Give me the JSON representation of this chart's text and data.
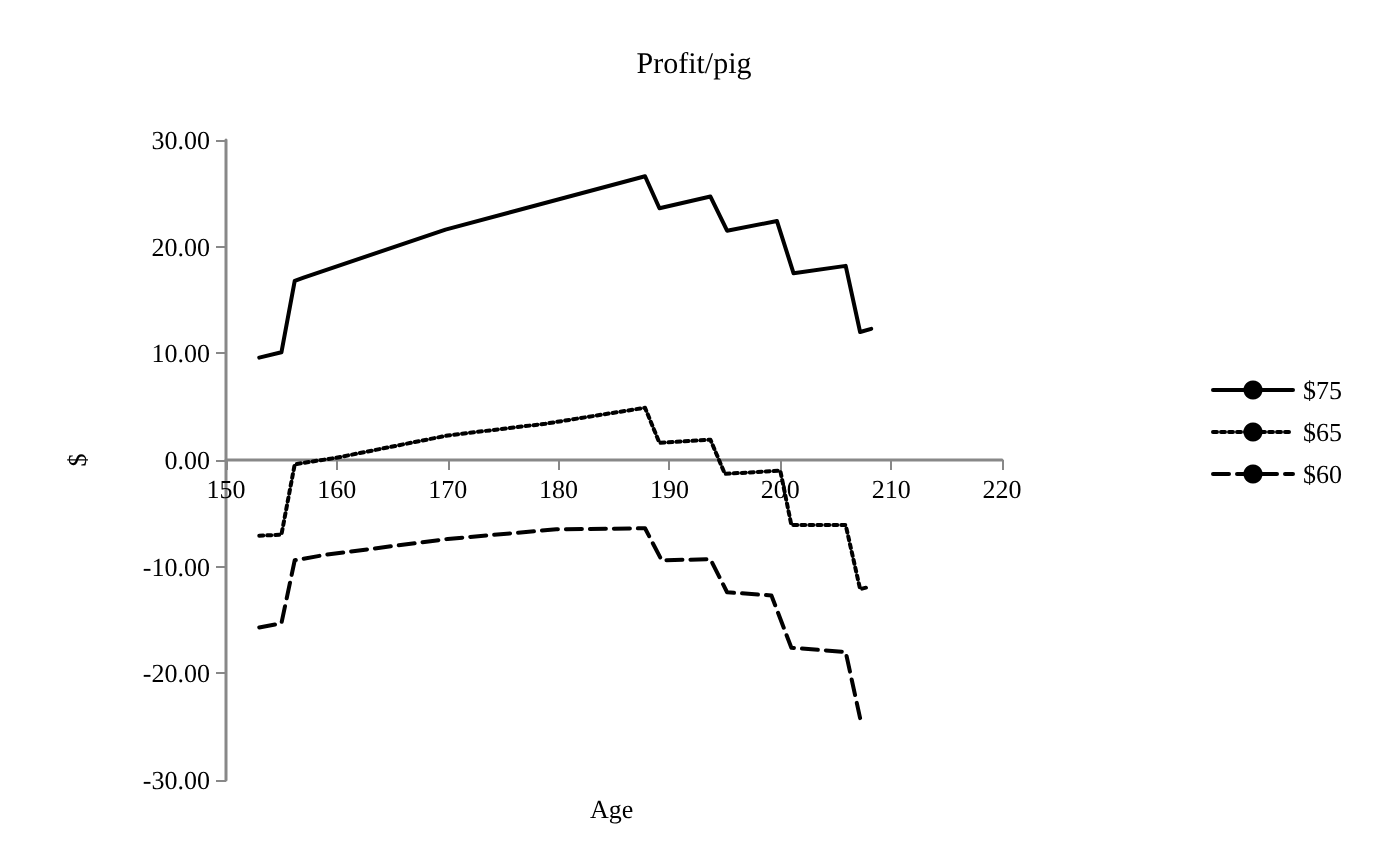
{
  "chart_data": {
    "type": "line",
    "title": "Profit/pig",
    "xlabel": "Age",
    "ylabel": "$",
    "xlim": [
      150,
      220
    ],
    "xticks": [
      150,
      160,
      170,
      180,
      190,
      200,
      210,
      220
    ],
    "ylim": [
      -30,
      30
    ],
    "yticks": [
      {
        "value": -30,
        "label": "-30.00"
      },
      {
        "value": -20,
        "label": "-20.00"
      },
      {
        "value": -10,
        "label": "-10.00"
      },
      {
        "value": 0,
        "label": "0.00"
      },
      {
        "value": 10,
        "label": "10.00"
      },
      {
        "value": 20,
        "label": "20.00"
      },
      {
        "value": 30,
        "label": "30.00"
      }
    ],
    "legend": "right",
    "marker": "none",
    "series": [
      {
        "name": "$75",
        "color": "#000000",
        "line_style": "solid",
        "x": [
          153,
          155,
          156.2,
          157,
          169.8,
          187.8,
          189.1,
          193.7,
          195.2,
          199.7,
          201.2,
          205.9,
          207.2,
          208.2
        ],
        "values": [
          9.6,
          10.1,
          16.8,
          17.1,
          21.6,
          26.6,
          23.6,
          24.7,
          21.5,
          22.4,
          17.5,
          18.2,
          12.0,
          12.3
        ]
      },
      {
        "name": "$65",
        "color": "#000000",
        "line_style": "dotted",
        "x": [
          153,
          155,
          156.2,
          159.9,
          170,
          178.8,
          187.8,
          189.1,
          193.7,
          195,
          200,
          201,
          205.9,
          207.2,
          208
        ],
        "values": [
          -7.1,
          -7.0,
          -0.4,
          0.2,
          2.3,
          3.4,
          4.9,
          1.6,
          1.9,
          -1.3,
          -1.0,
          -6.1,
          -6.1,
          -12.1,
          -11.9
        ]
      },
      {
        "name": "$60",
        "color": "#000000",
        "line_style": "dashed",
        "x": [
          153,
          155,
          156.2,
          158.9,
          170,
          179.8,
          187.8,
          189.3,
          193.7,
          195.2,
          199.2,
          201,
          205.9,
          207.2
        ],
        "values": [
          -15.7,
          -15.3,
          -9.4,
          -8.9,
          -7.4,
          -6.5,
          -6.4,
          -9.4,
          -9.3,
          -12.4,
          -12.7,
          -17.6,
          -18.0,
          -24.2
        ]
      }
    ]
  }
}
